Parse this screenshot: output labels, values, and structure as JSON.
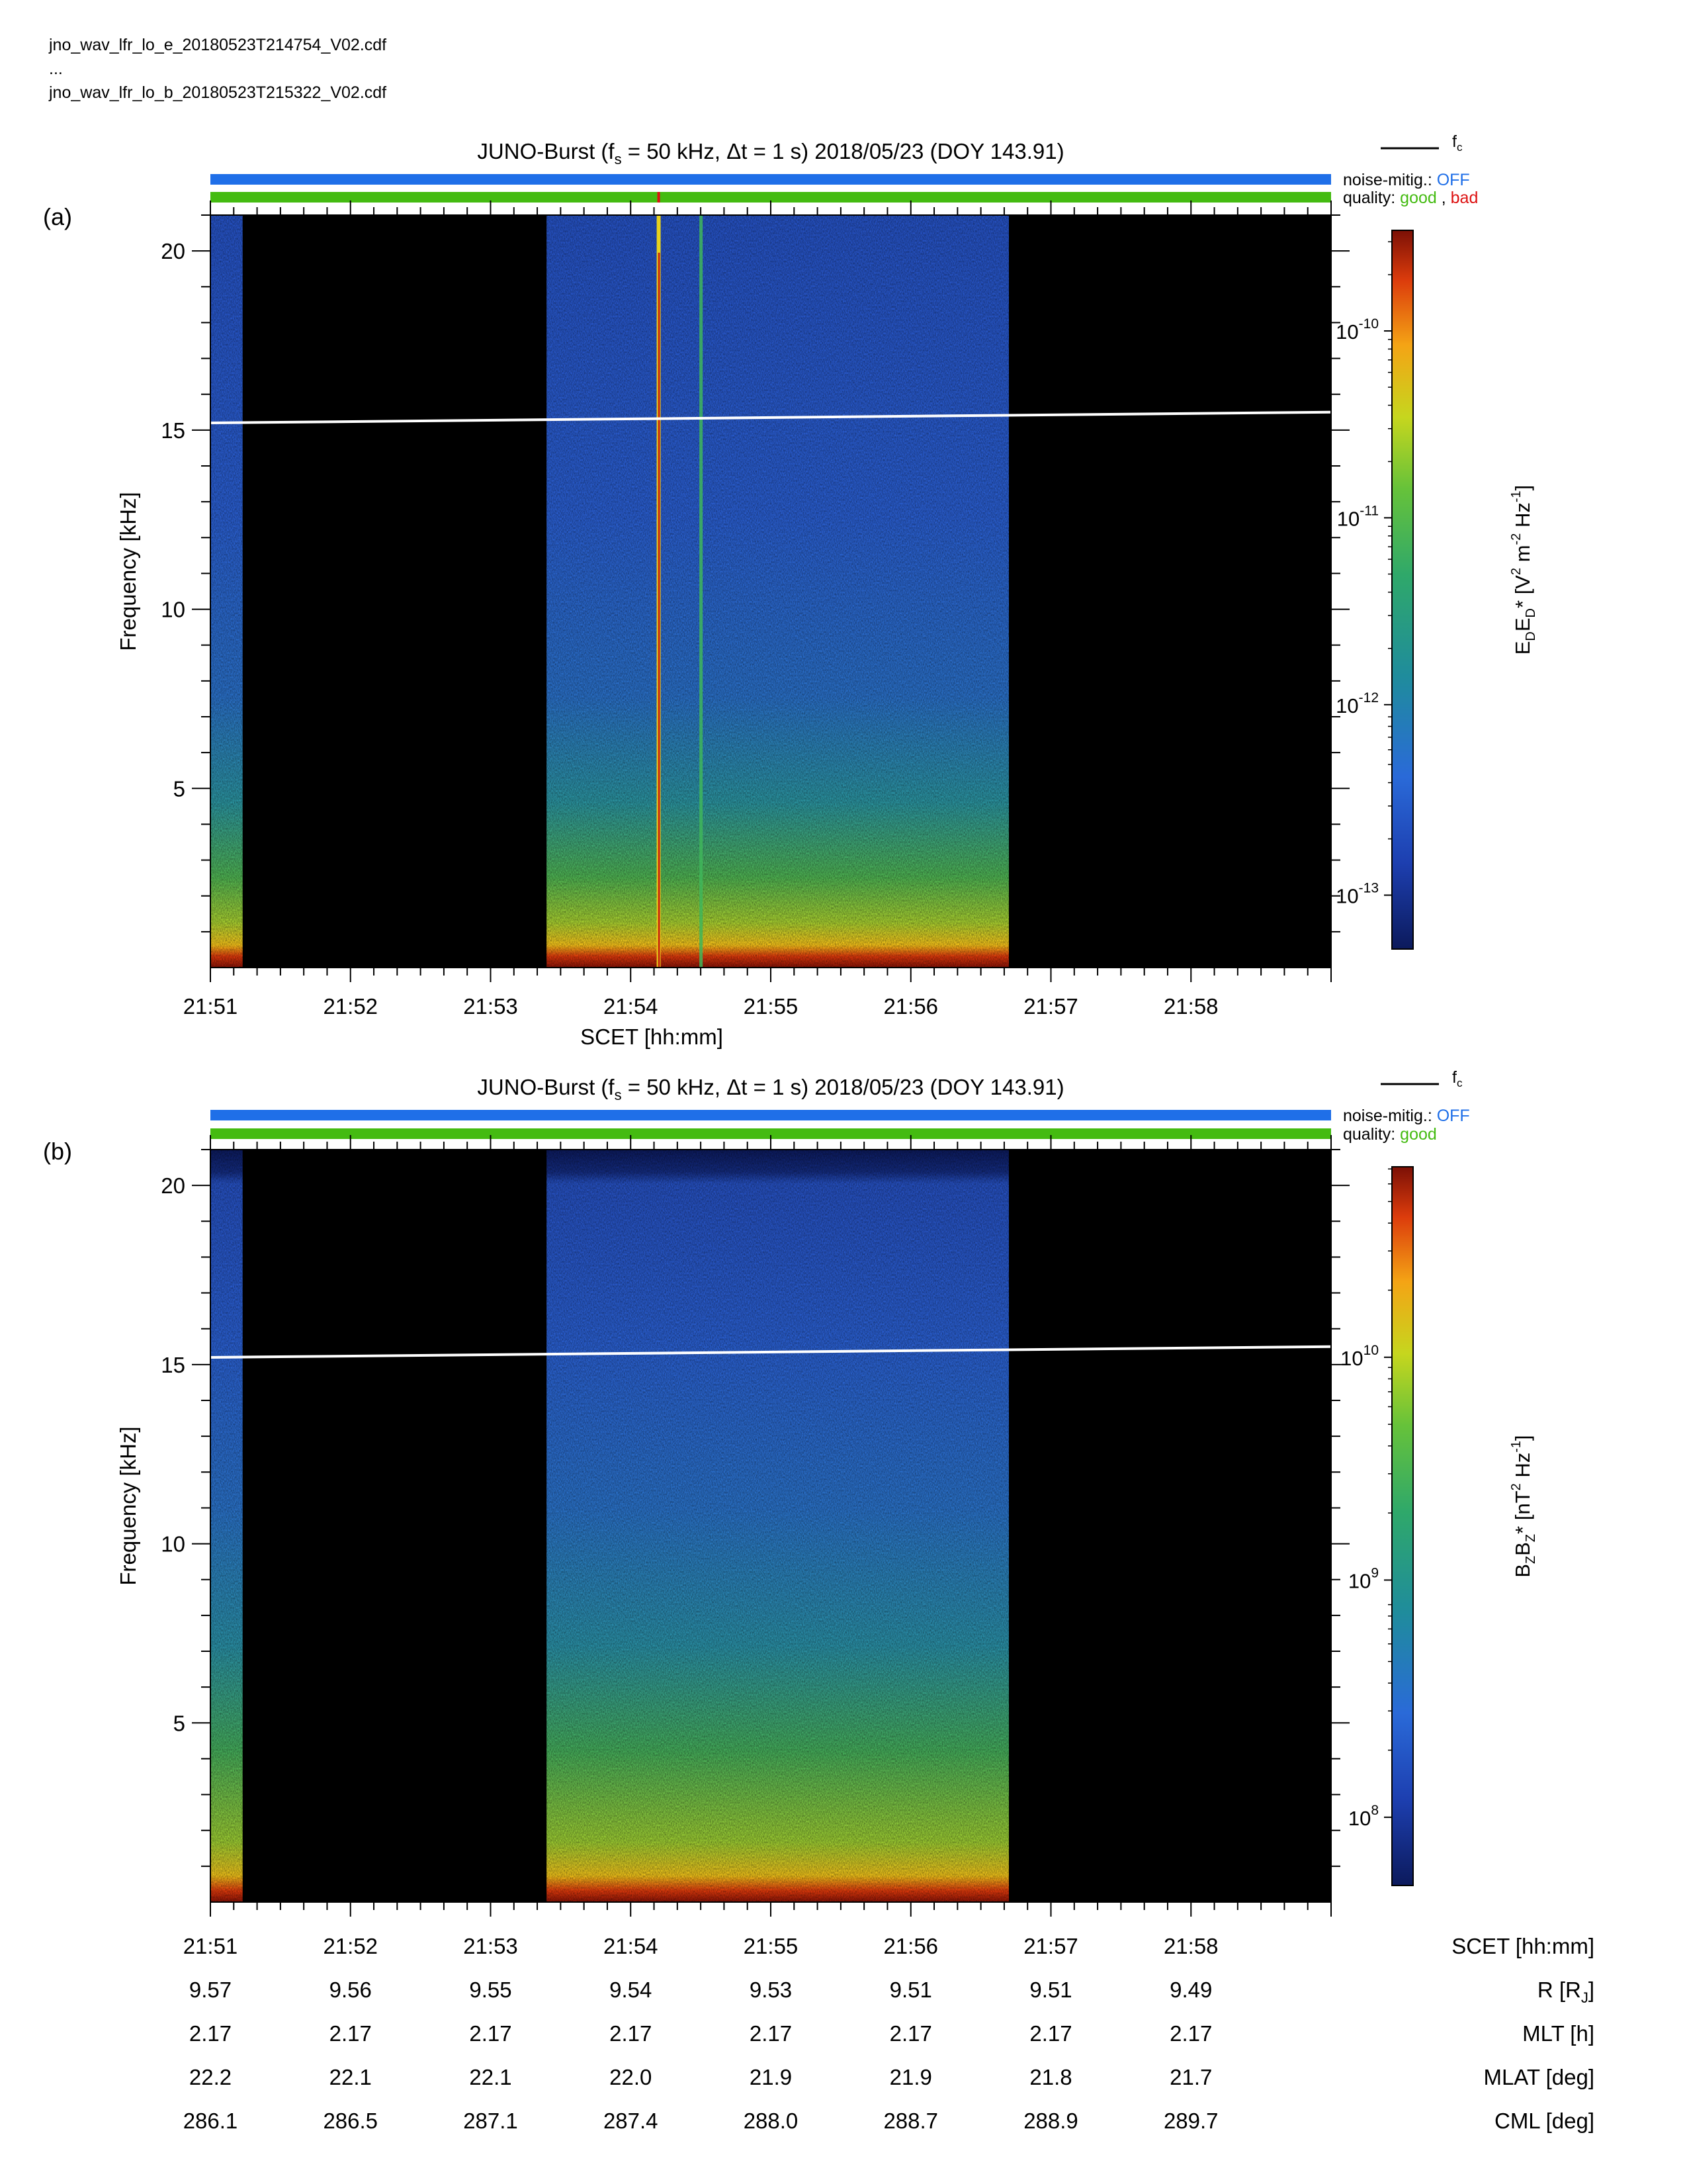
{
  "files": [
    "jno_wav_lfr_lo_e_20180523T214754_V02.cdf",
    "...",
    "jno_wav_lfr_lo_b_20180523T215322_V02.cdf"
  ],
  "colors": {
    "noise_bar": "#1f6fe8",
    "quality_good": "#44bb11",
    "quality_bad": "#dd1111",
    "fc_line": "#ffffff",
    "data_gap": "#000000"
  },
  "panels": [
    {
      "label": "(a)",
      "title": "JUNO-Burst (f",
      "title_sub": "s",
      "title_rest": " = 50 kHz, Δt = 1 s)  2018/05/23 (DOY 143.91)",
      "fc_legend": "f",
      "fc_legend_sub": "c",
      "noise_label": "noise-mitig.:",
      "noise_value": "OFF",
      "quality_label": "quality:",
      "quality_good": "good",
      "quality_sep": ",",
      "quality_bad": "bad",
      "ylabel": "Frequency [kHz]",
      "xlabel": "SCET [hh:mm]",
      "cbar_label": "E_D E_D* [V² m⁻² Hz⁻¹]",
      "cbar_ticks": [
        {
          "base": "10",
          "exp": "-10",
          "frac": 0.86
        },
        {
          "base": "10",
          "exp": "-11",
          "frac": 0.6
        },
        {
          "base": "10",
          "exp": "-12",
          "frac": 0.34
        },
        {
          "base": "10",
          "exp": "-13",
          "frac": 0.075
        }
      ]
    },
    {
      "label": "(b)",
      "title": "JUNO-Burst (f",
      "title_sub": "s",
      "title_rest": " = 50 kHz, Δt = 1 s)  2018/05/23 (DOY 143.91)",
      "fc_legend": "f",
      "fc_legend_sub": "c",
      "noise_label": "noise-mitig.:",
      "noise_value": "OFF",
      "quality_label": "quality:",
      "quality_good": "good",
      "ylabel": "Frequency [kHz]",
      "cbar_label": "B_Z B_Z* [nT² Hz⁻¹]",
      "cbar_ticks": [
        {
          "base": "10",
          "exp": "10",
          "frac": 0.735
        },
        {
          "base": "10",
          "exp": "9",
          "frac": 0.425
        },
        {
          "base": "10",
          "exp": "8",
          "frac": 0.095
        }
      ]
    }
  ],
  "ephemeris": {
    "rows": [
      {
        "label": "SCET [hh:mm]",
        "values": [
          "21:51",
          "21:52",
          "21:53",
          "21:54",
          "21:55",
          "21:56",
          "21:57",
          "21:58"
        ]
      },
      {
        "label": "R [R_J]",
        "values": [
          "9.57",
          "9.56",
          "9.55",
          "9.54",
          "9.53",
          "9.51",
          "9.51",
          "9.49"
        ]
      },
      {
        "label": "MLT [h]",
        "values": [
          "2.17",
          "2.17",
          "2.17",
          "2.17",
          "2.17",
          "2.17",
          "2.17",
          "2.17"
        ]
      },
      {
        "label": "MLAT [deg]",
        "values": [
          "22.2",
          "22.1",
          "22.1",
          "22.0",
          "21.9",
          "21.9",
          "21.8",
          "21.7"
        ]
      },
      {
        "label": "CML [deg]",
        "values": [
          "286.1",
          "286.5",
          "287.1",
          "287.4",
          "288.0",
          "288.7",
          "288.9",
          "289.7"
        ]
      }
    ]
  },
  "chart_data": [
    {
      "type": "heatmap",
      "title": "JUNO-Burst (fs = 50 kHz, Δt = 1 s)  2018/05/23 (DOY 143.91)",
      "xlabel": "SCET [hh:mm]",
      "ylabel": "Frequency [kHz]",
      "x_tick_labels": [
        "21:51",
        "21:52",
        "21:53",
        "21:54",
        "21:55",
        "21:56",
        "21:57",
        "21:58"
      ],
      "x_range_min": [
        0,
        8
      ],
      "y_ticks": [
        5,
        10,
        15,
        20
      ],
      "ylim": [
        0,
        21
      ],
      "colorbar_label": "E_D E_D* [V² m⁻² Hz⁻¹]",
      "colorbar_scale": "log",
      "colorbar_range": [
        5e-14,
        3e-10
      ],
      "colorbar_ticks": [
        "10^-10",
        "10^-11",
        "10^-12",
        "10^-13"
      ],
      "data_segments_min": [
        [
          0.0,
          0.23
        ],
        [
          2.4,
          5.7
        ]
      ],
      "fc_line": {
        "x_min": [
          0,
          8
        ],
        "y_kHz": [
          15.2,
          15.5
        ]
      },
      "features": [
        {
          "type": "vertical_line",
          "x_min": 3.2,
          "color": "red/yellow"
        },
        {
          "type": "vertical_line",
          "x_min": 3.5,
          "color": "green"
        }
      ],
      "quality_bad_at_min": 3.2,
      "noise_mitigation": "OFF"
    },
    {
      "type": "heatmap",
      "title": "JUNO-Burst (fs = 50 kHz, Δt = 1 s)  2018/05/23 (DOY 143.91)",
      "xlabel": "SCET [hh:mm]",
      "ylabel": "Frequency [kHz]",
      "x_tick_labels": [
        "21:51",
        "21:52",
        "21:53",
        "21:54",
        "21:55",
        "21:56",
        "21:57",
        "21:58"
      ],
      "x_range_min": [
        0,
        8
      ],
      "y_ticks": [
        5,
        10,
        15,
        20
      ],
      "ylim": [
        0,
        21
      ],
      "colorbar_label": "B_Z B_Z* [nT² Hz⁻¹]",
      "colorbar_scale": "log",
      "colorbar_range": [
        50000000.0,
        60000000000.0
      ],
      "colorbar_ticks": [
        "10^10",
        "10^9",
        "10^8"
      ],
      "data_segments_min": [
        [
          0.0,
          0.23
        ],
        [
          2.4,
          5.7
        ]
      ],
      "fc_line": {
        "x_min": [
          0,
          8
        ],
        "y_kHz": [
          15.2,
          15.5
        ]
      },
      "noise_mitigation": "OFF"
    }
  ]
}
